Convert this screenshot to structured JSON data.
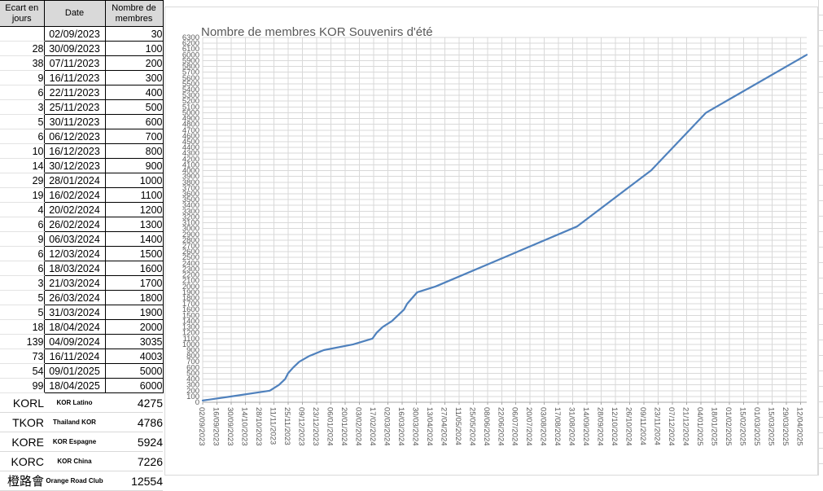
{
  "table": {
    "header_bg": "#d9d9d9",
    "headers": {
      "col1": "Ecart en jours",
      "col2": "Date",
      "col3": "Nombre de membres"
    },
    "rows": [
      {
        "ecart": "",
        "date": "02/09/2023",
        "membres": "30"
      },
      {
        "ecart": "28",
        "date": "30/09/2023",
        "membres": "100"
      },
      {
        "ecart": "38",
        "date": "07/11/2023",
        "membres": "200"
      },
      {
        "ecart": "9",
        "date": "16/11/2023",
        "membres": "300"
      },
      {
        "ecart": "6",
        "date": "22/11/2023",
        "membres": "400"
      },
      {
        "ecart": "3",
        "date": "25/11/2023",
        "membres": "500"
      },
      {
        "ecart": "5",
        "date": "30/11/2023",
        "membres": "600"
      },
      {
        "ecart": "6",
        "date": "06/12/2023",
        "membres": "700"
      },
      {
        "ecart": "10",
        "date": "16/12/2023",
        "membres": "800"
      },
      {
        "ecart": "14",
        "date": "30/12/2023",
        "membres": "900"
      },
      {
        "ecart": "29",
        "date": "28/01/2024",
        "membres": "1000"
      },
      {
        "ecart": "19",
        "date": "16/02/2024",
        "membres": "1100"
      },
      {
        "ecart": "4",
        "date": "20/02/2024",
        "membres": "1200"
      },
      {
        "ecart": "6",
        "date": "26/02/2024",
        "membres": "1300"
      },
      {
        "ecart": "9",
        "date": "06/03/2024",
        "membres": "1400"
      },
      {
        "ecart": "6",
        "date": "12/03/2024",
        "membres": "1500"
      },
      {
        "ecart": "6",
        "date": "18/03/2024",
        "membres": "1600"
      },
      {
        "ecart": "3",
        "date": "21/03/2024",
        "membres": "1700"
      },
      {
        "ecart": "5",
        "date": "26/03/2024",
        "membres": "1800"
      },
      {
        "ecart": "5",
        "date": "31/03/2024",
        "membres": "1900"
      },
      {
        "ecart": "18",
        "date": "18/04/2024",
        "membres": "2000"
      },
      {
        "ecart": "139",
        "date": "04/09/2024",
        "membres": "3035"
      },
      {
        "ecart": "73",
        "date": "16/11/2024",
        "membres": "4003"
      },
      {
        "ecart": "54",
        "date": "09/01/2025",
        "membres": "5000"
      },
      {
        "ecart": "99",
        "date": "18/04/2025",
        "membres": "6000"
      }
    ],
    "clubs": [
      {
        "code": "KORL",
        "name": "KOR Latino",
        "membres": "4275",
        "cjk": false
      },
      {
        "code": "TKOR",
        "name": "Thailand KOR",
        "membres": "4786",
        "cjk": false
      },
      {
        "code": "KORE",
        "name": "KOR Espagne",
        "membres": "5924",
        "cjk": false
      },
      {
        "code": "KORC",
        "name": "KOR China",
        "membres": "7226",
        "cjk": false
      },
      {
        "code": "橙路會",
        "name": "Orange Road Club",
        "membres": "12554",
        "cjk": true
      }
    ]
  },
  "chart_data": {
    "type": "line",
    "title": "Nombre de membres KOR Souvenirs d'été",
    "grid": true,
    "legend": "none",
    "line_color": "#4f81bd",
    "gridline_color": "#d9d9d9",
    "axis_color": "#a6a6a6",
    "label_color": "#595959",
    "y_axis": {
      "min": 0,
      "max": 6300,
      "step": 100
    },
    "x_tick_interval_days": 14,
    "x_ticks": [
      "02/09/2023",
      "16/09/2023",
      "30/09/2023",
      "14/10/2023",
      "28/10/2023",
      "11/11/2023",
      "25/11/2023",
      "09/12/2023",
      "23/12/2023",
      "06/01/2024",
      "20/01/2024",
      "03/02/2024",
      "17/02/2024",
      "02/03/2024",
      "16/03/2024",
      "30/03/2024",
      "13/04/2024",
      "27/04/2024",
      "11/05/2024",
      "25/05/2024",
      "08/06/2024",
      "22/06/2024",
      "06/07/2024",
      "20/07/2024",
      "03/08/2024",
      "17/08/2024",
      "31/08/2024",
      "14/09/2024",
      "28/09/2024",
      "12/10/2024",
      "26/10/2024",
      "09/11/2024",
      "23/11/2024",
      "07/12/2024",
      "21/12/2024",
      "04/01/2025",
      "18/01/2025",
      "01/02/2025",
      "15/02/2025",
      "01/03/2025",
      "15/03/2025",
      "29/03/2025",
      "12/04/2025"
    ],
    "series": [
      {
        "name": "Nombre de membres",
        "x": [
          "02/09/2023",
          "30/09/2023",
          "07/11/2023",
          "16/11/2023",
          "22/11/2023",
          "25/11/2023",
          "30/11/2023",
          "06/12/2023",
          "16/12/2023",
          "30/12/2023",
          "28/01/2024",
          "16/02/2024",
          "20/02/2024",
          "26/02/2024",
          "06/03/2024",
          "12/03/2024",
          "18/03/2024",
          "21/03/2024",
          "26/03/2024",
          "31/03/2024",
          "18/04/2024",
          "04/09/2024",
          "16/11/2024",
          "09/01/2025",
          "18/04/2025"
        ],
        "values": [
          30,
          100,
          200,
          300,
          400,
          500,
          600,
          700,
          800,
          900,
          1000,
          1100,
          1200,
          1300,
          1400,
          1500,
          1600,
          1700,
          1800,
          1900,
          2000,
          3035,
          4003,
          5000,
          6000
        ]
      }
    ]
  }
}
